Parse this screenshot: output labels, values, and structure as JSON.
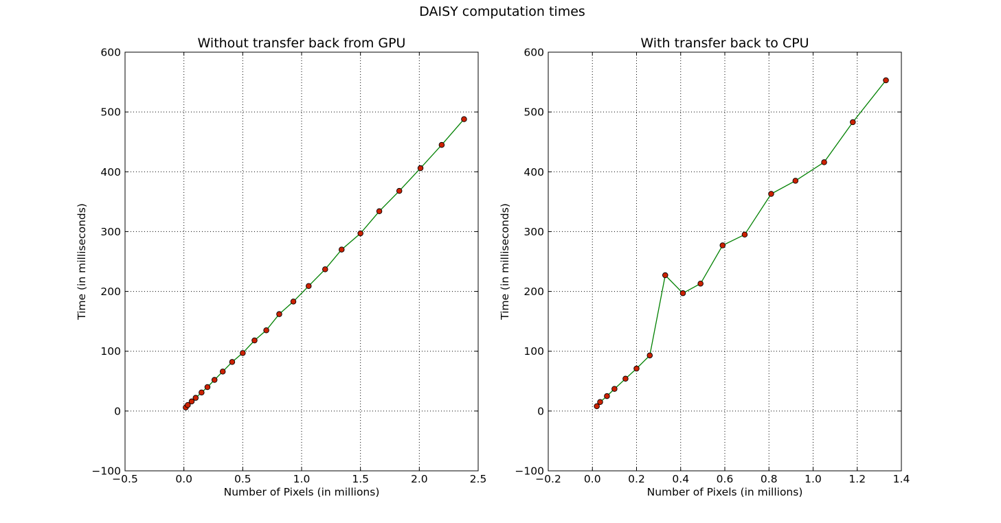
{
  "suptitle": "DAISY computation times",
  "colors": {
    "line": "#008000",
    "marker_fill": "#cc2200",
    "marker_edge": "#000000",
    "grid": "#000000"
  },
  "chart_data": [
    {
      "type": "line",
      "title": "Without transfer back from GPU",
      "xlabel": "Number of Pixels (in millions)",
      "ylabel": "Time (in milliseconds)",
      "xlim": [
        -0.5,
        2.5
      ],
      "ylim": [
        -100,
        600
      ],
      "xticks": [
        -0.5,
        0.0,
        0.5,
        1.0,
        1.5,
        2.0,
        2.5
      ],
      "xtick_labels": [
        "−0.5",
        "0.0",
        "0.5",
        "1.0",
        "1.5",
        "2.0",
        "2.5"
      ],
      "yticks": [
        -100,
        0,
        100,
        200,
        300,
        400,
        500,
        600
      ],
      "ytick_labels": [
        "−100",
        "0",
        "100",
        "200",
        "300",
        "400",
        "500",
        "600"
      ],
      "grid": true,
      "series": [
        {
          "x": [
            0.016,
            0.033,
            0.066,
            0.1,
            0.15,
            0.2,
            0.26,
            0.33,
            0.41,
            0.5,
            0.6,
            0.7,
            0.81,
            0.93,
            1.06,
            1.2,
            1.34,
            1.5,
            1.66,
            1.83,
            2.01,
            2.19,
            2.38
          ],
          "y": [
            6,
            10,
            16,
            22,
            31,
            40,
            52,
            66,
            82,
            97,
            118,
            135,
            162,
            183,
            209,
            237,
            270,
            297,
            334,
            368,
            406,
            445,
            488
          ]
        }
      ]
    },
    {
      "type": "line",
      "title": "With transfer back to CPU",
      "xlabel": "Number of Pixels (in millions)",
      "ylabel": "Time (in milliseconds)",
      "xlim": [
        -0.2,
        1.4
      ],
      "ylim": [
        -100,
        600
      ],
      "xticks": [
        -0.2,
        0.0,
        0.2,
        0.4,
        0.6,
        0.8,
        1.0,
        1.2,
        1.4
      ],
      "xtick_labels": [
        "−0.2",
        "0.0",
        "0.2",
        "0.4",
        "0.6",
        "0.8",
        "1.0",
        "1.2",
        "1.4"
      ],
      "yticks": [
        -100,
        0,
        100,
        200,
        300,
        400,
        500,
        600
      ],
      "ytick_labels": [
        "−100",
        "0",
        "100",
        "200",
        "300",
        "400",
        "500",
        "600"
      ],
      "grid": true,
      "series": [
        {
          "x": [
            0.02,
            0.035,
            0.066,
            0.1,
            0.15,
            0.2,
            0.26,
            0.33,
            0.41,
            0.49,
            0.59,
            0.69,
            0.81,
            0.92,
            1.05,
            1.18,
            1.33
          ],
          "y": [
            8,
            15,
            25,
            37,
            54,
            71,
            93,
            227,
            197,
            213,
            277,
            295,
            363,
            385,
            416,
            483,
            553
          ]
        }
      ]
    }
  ]
}
